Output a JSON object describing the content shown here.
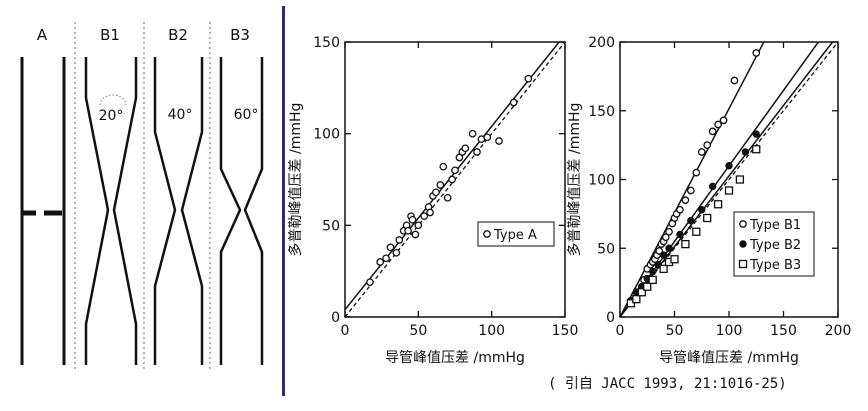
{
  "diagram": {
    "labels": [
      "A",
      "B1",
      "B2",
      "B3"
    ],
    "angles": [
      "20°",
      "40°",
      "60°"
    ]
  },
  "chart_data": [
    {
      "type": "scatter",
      "xlabel": "导管峰值压差 /mmHg",
      "ylabel": "多普勒峰值压差 /mmHg",
      "xlim": [
        0,
        150
      ],
      "ylim": [
        0,
        150
      ],
      "xticks": [
        "0",
        "50",
        "100",
        "150"
      ],
      "yticks": [
        "0",
        "50",
        "100",
        "150"
      ],
      "grid": false,
      "legend_position": "middle-right",
      "series": [
        {
          "name": "Type A",
          "marker": "open-circle",
          "x": [
            17,
            24,
            28,
            31,
            35,
            37,
            40,
            42,
            43,
            45,
            46,
            48,
            50,
            54,
            57,
            58,
            60,
            62,
            65,
            67,
            70,
            73,
            75,
            78,
            80,
            82,
            87,
            90,
            93,
            97,
            105,
            115,
            125
          ],
          "y": [
            19,
            30,
            32,
            38,
            35,
            42,
            47,
            50,
            47,
            55,
            53,
            45,
            50,
            55,
            60,
            57,
            66,
            68,
            72,
            82,
            65,
            75,
            80,
            87,
            90,
            92,
            100,
            90,
            97,
            98,
            96,
            117,
            130
          ],
          "fit": {
            "x": [
              0,
              150
            ],
            "y": [
              4,
              154
            ],
            "style": "solid"
          }
        }
      ],
      "identity_line": {
        "x": [
          0,
          150
        ],
        "y": [
          0,
          150
        ],
        "style": "dashed"
      }
    },
    {
      "type": "scatter",
      "xlabel": "导管峰值压差 /mmHg",
      "ylabel": "多普勒峰值压差 /mmHg",
      "xlim": [
        0,
        200
      ],
      "ylim": [
        0,
        200
      ],
      "xticks": [
        "0",
        "50",
        "100",
        "150",
        "200"
      ],
      "yticks": [
        "0",
        "50",
        "100",
        "150",
        "200"
      ],
      "grid": false,
      "legend_position": "bottom-right",
      "series": [
        {
          "name": "Type B1",
          "marker": "open-circle",
          "x": [
            15,
            20,
            22,
            25,
            28,
            30,
            32,
            34,
            36,
            38,
            40,
            42,
            45,
            48,
            50,
            52,
            55,
            60,
            65,
            70,
            75,
            80,
            85,
            90,
            95,
            105,
            125
          ],
          "y": [
            18,
            22,
            27,
            35,
            38,
            40,
            42,
            45,
            48,
            53,
            55,
            58,
            62,
            68,
            72,
            75,
            78,
            85,
            92,
            105,
            120,
            125,
            135,
            140,
            143,
            172,
            192
          ],
          "fit": {
            "x": [
              0,
              132
            ],
            "y": [
              0,
              200
            ],
            "style": "solid"
          }
        },
        {
          "name": "Type B2",
          "marker": "filled-circle",
          "x": [
            10,
            15,
            20,
            25,
            30,
            35,
            40,
            45,
            55,
            65,
            75,
            85,
            100,
            115,
            125
          ],
          "y": [
            12,
            18,
            22,
            28,
            33,
            38,
            45,
            50,
            60,
            70,
            78,
            95,
            110,
            120,
            133
          ],
          "fit": {
            "x": [
              0,
              182
            ],
            "y": [
              0,
              200
            ],
            "style": "solid"
          }
        },
        {
          "name": "Type B3",
          "marker": "open-square",
          "x": [
            10,
            15,
            20,
            25,
            30,
            40,
            45,
            50,
            60,
            70,
            80,
            90,
            100,
            110,
            125
          ],
          "y": [
            10,
            13,
            18,
            22,
            27,
            35,
            40,
            42,
            53,
            62,
            72,
            82,
            92,
            100,
            122
          ],
          "fit": {
            "x": [
              0,
              195
            ],
            "y": [
              0,
              200
            ],
            "style": "solid"
          }
        }
      ],
      "identity_line": {
        "x": [
          0,
          200
        ],
        "y": [
          0,
          200
        ],
        "style": "dashed"
      }
    }
  ],
  "source_note": "( 引自 JACC 1993, 21:1016-25)"
}
